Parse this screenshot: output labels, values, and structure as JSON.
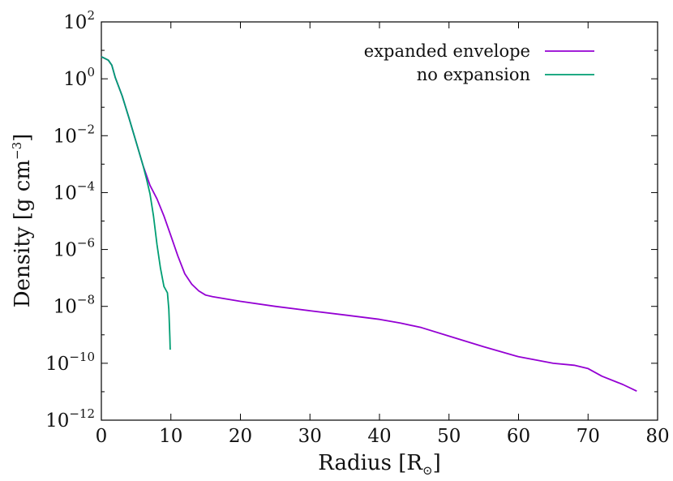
{
  "chart_data": {
    "type": "line",
    "title": "",
    "xlabel": "Radius [R",
    "xlabel_sub": "⊙",
    "xlabel_close": "]",
    "ylabel": "Density [g cm",
    "ylabel_sup": "−3",
    "ylabel_close": "]",
    "xlim": [
      0,
      80
    ],
    "ylim_log10": [
      -12,
      2
    ],
    "yscale": "log",
    "grid": false,
    "legend_placement": "top-right",
    "x_ticks": [
      "0",
      "10",
      "20",
      "30",
      "40",
      "50",
      "60",
      "70",
      "80"
    ],
    "y_ticks": [
      {
        "base": "10",
        "exp": "2"
      },
      {
        "base": "10",
        "exp": "0"
      },
      {
        "base": "10",
        "exp": "−2"
      },
      {
        "base": "10",
        "exp": "−4"
      },
      {
        "base": "10",
        "exp": "−6"
      },
      {
        "base": "10",
        "exp": "−8"
      },
      {
        "base": "10",
        "exp": "−10"
      },
      {
        "base": "10",
        "exp": "−12"
      }
    ],
    "series": [
      {
        "name": "expanded envelope",
        "color": "#9400d3",
        "x": [
          0,
          1,
          1.5,
          2,
          3,
          4,
          5,
          6,
          7,
          8,
          9,
          10,
          11,
          12,
          13,
          14,
          15,
          16,
          20,
          25,
          30,
          35,
          40,
          43,
          46,
          50,
          55,
          60,
          65,
          68,
          70,
          72,
          75,
          77
        ],
        "y": [
          6,
          4.5,
          3,
          1.1,
          0.25,
          0.04,
          0.006,
          0.0009,
          0.00018,
          6e-05,
          1.5e-05,
          3e-06,
          6e-07,
          1.4e-07,
          6e-08,
          3.5e-08,
          2.5e-08,
          2.2e-08,
          1.5e-08,
          1e-08,
          7e-09,
          5e-09,
          3.5e-09,
          2.6e-09,
          1.8e-09,
          9e-10,
          3.8e-10,
          1.7e-10,
          1e-10,
          8.5e-11,
          6.5e-11,
          3.5e-11,
          1.8e-11,
          1.05e-11
        ]
      },
      {
        "name": "no expansion",
        "color": "#009e73",
        "x": [
          0,
          1,
          1.5,
          2,
          3,
          4,
          5,
          6,
          6.5,
          7,
          7.5,
          8,
          8.5,
          9,
          9.5,
          9.7,
          9.8,
          9.85,
          9.9
        ],
        "y": [
          6,
          4.5,
          3,
          1.1,
          0.25,
          0.04,
          0.006,
          0.0009,
          0.0003,
          9e-05,
          1.5e-05,
          1.5e-06,
          2.2e-07,
          5e-08,
          3e-08,
          8e-09,
          2e-09,
          8e-10,
          3e-10
        ]
      }
    ]
  }
}
